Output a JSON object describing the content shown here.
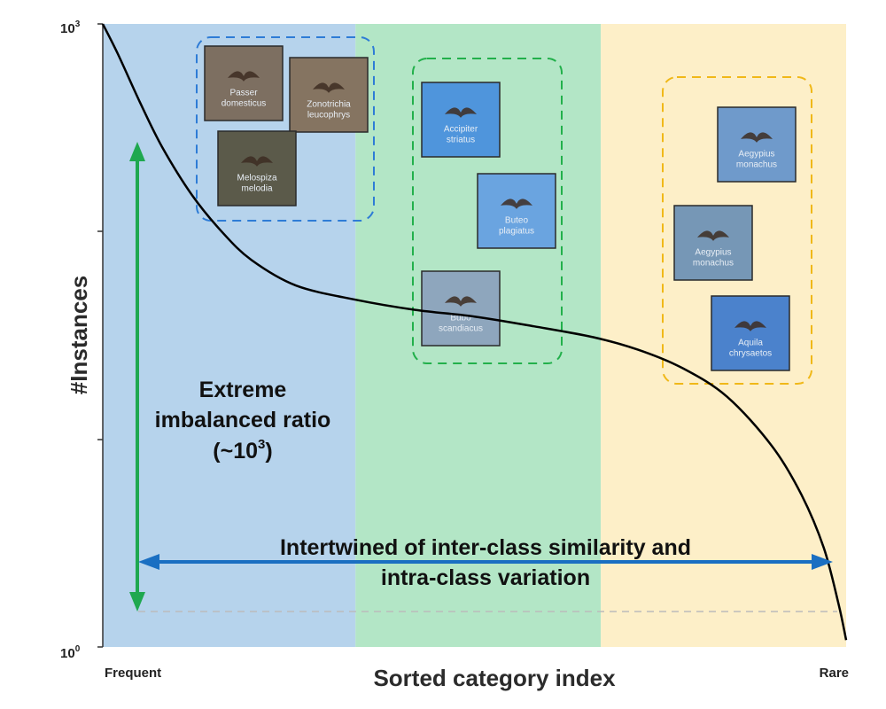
{
  "chart_data": {
    "type": "line",
    "ylabel": "#Instances",
    "xlabel": "Sorted category index",
    "x_tick_labels": {
      "left": "Frequent",
      "right": "Rare"
    },
    "y_tick_labels": [
      {
        "base": "10",
        "exp": "3"
      },
      {
        "base": "10",
        "exp": "0"
      }
    ],
    "yscale": "log",
    "ylim": [
      1,
      1000
    ],
    "xlim": [
      0,
      1
    ],
    "series": [
      {
        "color": "#000000",
        "points": [
          [
            0.0,
            1000
          ],
          [
            0.02,
            720
          ],
          [
            0.05,
            420
          ],
          [
            0.08,
            255
          ],
          [
            0.12,
            150
          ],
          [
            0.16,
            100
          ],
          [
            0.2,
            73
          ],
          [
            0.26,
            55
          ],
          [
            0.34,
            47
          ],
          [
            0.42,
            42
          ],
          [
            0.5,
            39
          ],
          [
            0.58,
            35
          ],
          [
            0.66,
            31
          ],
          [
            0.72,
            27
          ],
          [
            0.78,
            22
          ],
          [
            0.84,
            16
          ],
          [
            0.9,
            9.3
          ],
          [
            0.94,
            5.4
          ],
          [
            0.97,
            3.0
          ],
          [
            0.99,
            1.6
          ],
          [
            1.0,
            1.08
          ]
        ]
      }
    ],
    "regions": [
      {
        "from": 0.0,
        "to": 0.34,
        "color": "#b6d3ec"
      },
      {
        "from": 0.34,
        "to": 0.67,
        "color": "#b3e6c6"
      },
      {
        "from": 0.67,
        "to": 1.0,
        "color": "#fdefc8"
      }
    ],
    "groups": [
      {
        "border_color": "#2e7cd6",
        "photos": [
          {
            "label_lines": [
              "Passer",
              "domesticus"
            ],
            "bg": "#7d6f61"
          },
          {
            "label_lines": [
              "Zonotrichia",
              "leucophrys"
            ],
            "bg": "#857461"
          },
          {
            "label_lines": [
              "Melospiza",
              "melodia"
            ],
            "bg": "#5b5a4a"
          }
        ]
      },
      {
        "border_color": "#22b04b",
        "photos": [
          {
            "label_lines": [
              "Accipiter",
              "striatus"
            ],
            "bg": "#4f95dc"
          },
          {
            "label_lines": [
              "Buteo",
              "plagiatus"
            ],
            "bg": "#6aa4e0"
          },
          {
            "label_lines": [
              "Bubo",
              "scandiacus"
            ],
            "bg": "#8ea6bd"
          }
        ]
      },
      {
        "border_color": "#f0b818",
        "photos": [
          {
            "label_lines": [
              "Aegypius",
              "monachus"
            ],
            "bg": "#6f9acb"
          },
          {
            "label_lines": [
              "Aegypius",
              "monachus"
            ],
            "bg": "#7697b6"
          },
          {
            "label_lines": [
              "Aquila",
              "chrysaetos"
            ],
            "bg": "#4b82cc"
          }
        ]
      }
    ],
    "annotations": {
      "imbalance_lines": [
        "Extreme",
        "imbalanced ratio"
      ],
      "imbalance_approx": {
        "prefix": "(~",
        "base": "10",
        "exp": "3",
        "suffix": ")"
      },
      "variation_lines": [
        "Intertwined of inter-class similarity and",
        "intra-class variation"
      ],
      "vertical_arrow_color": "#1fa84f",
      "horizontal_arrow_color": "#1a6fc2",
      "baseline_color": "#bbbbbb"
    }
  }
}
